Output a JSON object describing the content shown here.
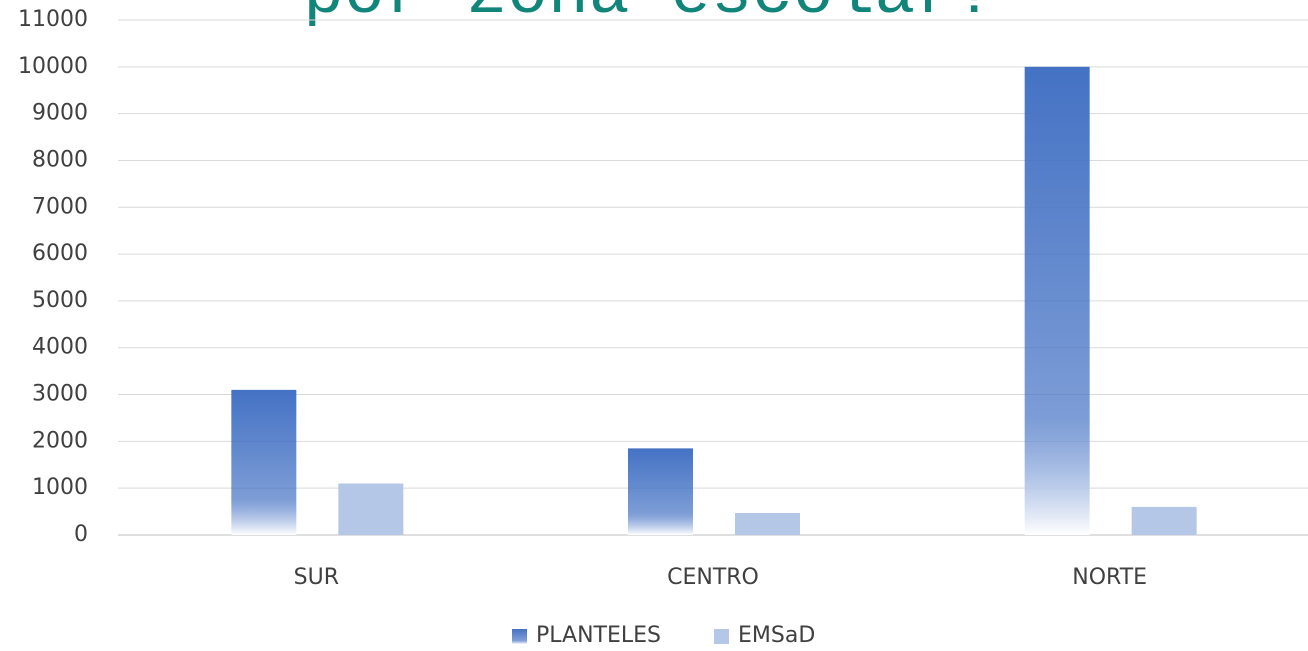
{
  "chart_data": {
    "type": "bar",
    "title": "por zona escolar?",
    "categories": [
      "SUR",
      "CENTRO",
      "NORTE"
    ],
    "series": [
      {
        "name": "PLANTELES",
        "color": "#4472c4",
        "values": [
          3100,
          1850,
          10000
        ]
      },
      {
        "name": "EMSaD",
        "color": "#b4c7e7",
        "values": [
          1100,
          470,
          600
        ]
      }
    ],
    "ylim": [
      0,
      11000
    ],
    "yticks": [
      0,
      1000,
      2000,
      3000,
      4000,
      5000,
      6000,
      7000,
      8000,
      9000,
      10000,
      11000
    ],
    "grid": true,
    "legend": "bottom"
  }
}
